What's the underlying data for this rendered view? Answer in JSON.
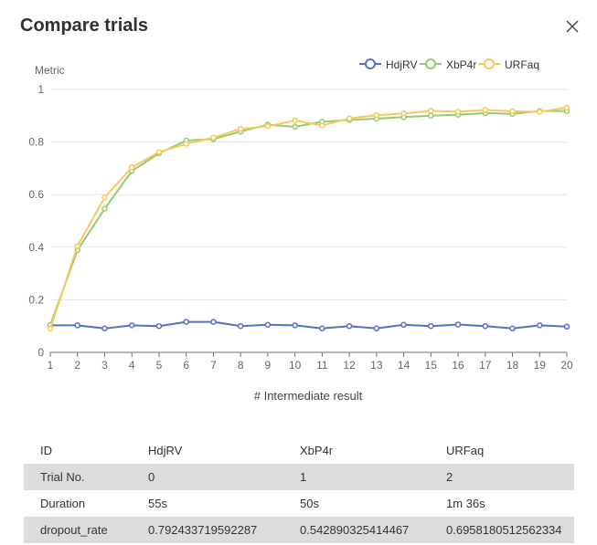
{
  "dialog": {
    "title": "Compare trials",
    "close_icon": "close-x-icon"
  },
  "chart_data": {
    "type": "line",
    "ylabel": "Metric",
    "xlabel": "# Intermediate result",
    "x": [
      1,
      2,
      3,
      4,
      5,
      6,
      7,
      8,
      9,
      10,
      11,
      12,
      13,
      14,
      15,
      16,
      17,
      18,
      19,
      20
    ],
    "ylim": [
      0,
      1
    ],
    "yticks": [
      "0",
      "0.2",
      "0.4",
      "0.6",
      "0.8",
      "1"
    ],
    "grid": true,
    "legend": "top-right",
    "series": [
      {
        "name": "HdjRV",
        "color": "#5470c6",
        "values": [
          0.103,
          0.103,
          0.091,
          0.103,
          0.1,
          0.116,
          0.116,
          0.1,
          0.105,
          0.103,
          0.091,
          0.1,
          0.091,
          0.105,
          0.1,
          0.106,
          0.1,
          0.091,
          0.103,
          0.098
        ]
      },
      {
        "name": "XbP4r",
        "color": "#91cc75",
        "values": [
          0.104,
          0.389,
          0.546,
          0.69,
          0.757,
          0.806,
          0.811,
          0.84,
          0.866,
          0.858,
          0.877,
          0.884,
          0.889,
          0.895,
          0.9,
          0.904,
          0.91,
          0.907,
          0.918,
          0.918
        ]
      },
      {
        "name": "URFaq",
        "color": "#fac858",
        "values": [
          0.09,
          0.405,
          0.589,
          0.704,
          0.762,
          0.793,
          0.817,
          0.85,
          0.86,
          0.882,
          0.863,
          0.89,
          0.902,
          0.909,
          0.919,
          0.915,
          0.922,
          0.917,
          0.915,
          0.931
        ]
      }
    ]
  },
  "table": {
    "header": [
      "ID",
      "HdjRV",
      "XbP4r",
      "URFaq"
    ],
    "rows": [
      [
        "Trial No.",
        "0",
        "1",
        "2"
      ],
      [
        "Duration",
        "55s",
        "50s",
        "1m 36s"
      ],
      [
        "dropout_rate",
        "0.792433719592287",
        "0.542890325414467",
        "0.6958180512562334"
      ]
    ]
  }
}
